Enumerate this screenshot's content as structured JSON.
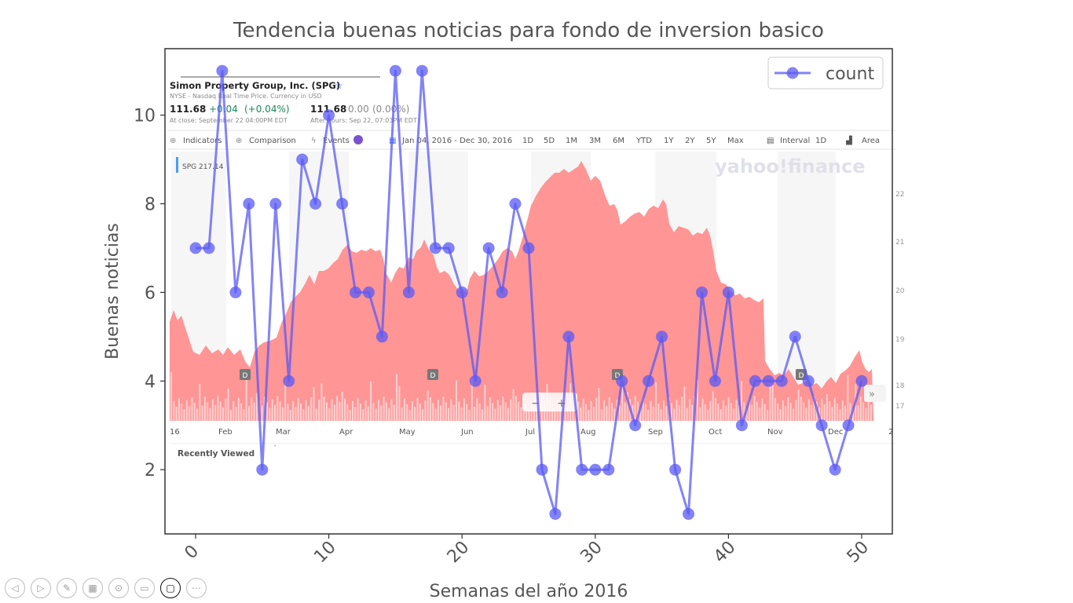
{
  "chart_data": {
    "type": "line",
    "title": "Tendencia buenas noticias para fondo de inversion basico",
    "xlabel": "Semanas del año 2016",
    "ylabel": "Buenas noticias",
    "xlim": [
      -2.3,
      52.3
    ],
    "ylim": [
      0.55,
      11.5
    ],
    "xticks": [
      0,
      10,
      20,
      30,
      40,
      50
    ],
    "yticks": [
      2,
      4,
      6,
      8,
      10
    ],
    "legend_position": "top-right",
    "series": [
      {
        "name": "count",
        "color": "#5a5af5",
        "x": [
          0,
          1,
          2,
          3,
          4,
          5,
          6,
          7,
          8,
          9,
          10,
          11,
          12,
          13,
          14,
          15,
          16,
          17,
          18,
          19,
          20,
          21,
          22,
          23,
          24,
          25,
          26,
          27,
          28,
          29,
          30,
          31,
          32,
          33,
          34,
          35,
          36,
          37,
          38,
          39,
          40,
          41,
          42,
          43,
          44,
          45,
          46,
          47,
          48,
          49,
          50
        ],
        "y": [
          7,
          7,
          11,
          6,
          8,
          2,
          8,
          4,
          9,
          8,
          10,
          8,
          6,
          6,
          5,
          11,
          6,
          11,
          7,
          7,
          6,
          4,
          7,
          6,
          8,
          7,
          2,
          1,
          5,
          2,
          2,
          2,
          4,
          3,
          4,
          5,
          2,
          1,
          6,
          4,
          6,
          3,
          4,
          4,
          4,
          5,
          4,
          3,
          2,
          3,
          4
        ]
      }
    ]
  },
  "background_screenshot": {
    "company_line": "Simon Property Group, Inc. (SPG)",
    "exchange_line": "NYSE - Nasdaq Real Time Price. Currency in USD",
    "close_price": "111.68",
    "close_change": "+0.04",
    "close_change_pct": "(+0.04%)",
    "close_time": "At close: September 22 04:00PM EDT",
    "after_price": "111.68",
    "after_change": "0.00",
    "after_change_pct": "(0.00%)",
    "after_time": "After hours: Sep 22, 07:03PM EDT",
    "toolbar": {
      "indicators": "Indicators",
      "comparison": "Comparison",
      "events": "Events",
      "date_range": "Jan 04, 2016 - Dec 30, 2016",
      "ranges": [
        "1D",
        "5D",
        "1M",
        "3M",
        "6M",
        "YTD",
        "1Y",
        "2Y",
        "5Y",
        "Max"
      ],
      "interval": "Interval",
      "interval_value": "1D",
      "chart_type": "Area"
    },
    "series_tag": "SPG 217.14",
    "watermark": "yahoo!finance",
    "months": [
      "16",
      "Feb",
      "Mar",
      "Apr",
      "May",
      "Jun",
      "Jul",
      "Aug",
      "Sep",
      "Oct",
      "Nov",
      "Dec",
      "2"
    ],
    "right_axis": [
      "22",
      "21",
      "20",
      "19",
      "18",
      "17"
    ],
    "dividend_marker": "D",
    "recently_viewed": "Recently Viewed",
    "colors": {
      "area": "#ff8f8f",
      "text_dark": "#222222",
      "positive": "#1a8a5a",
      "muted": "#8a8a8a",
      "accent": "#4a6cf7"
    }
  },
  "viewer_controls": [
    "prev-icon",
    "next-icon",
    "pen-icon",
    "grid-icon",
    "zoom-icon",
    "subtitles-icon",
    "camera-icon",
    "more-icon"
  ]
}
